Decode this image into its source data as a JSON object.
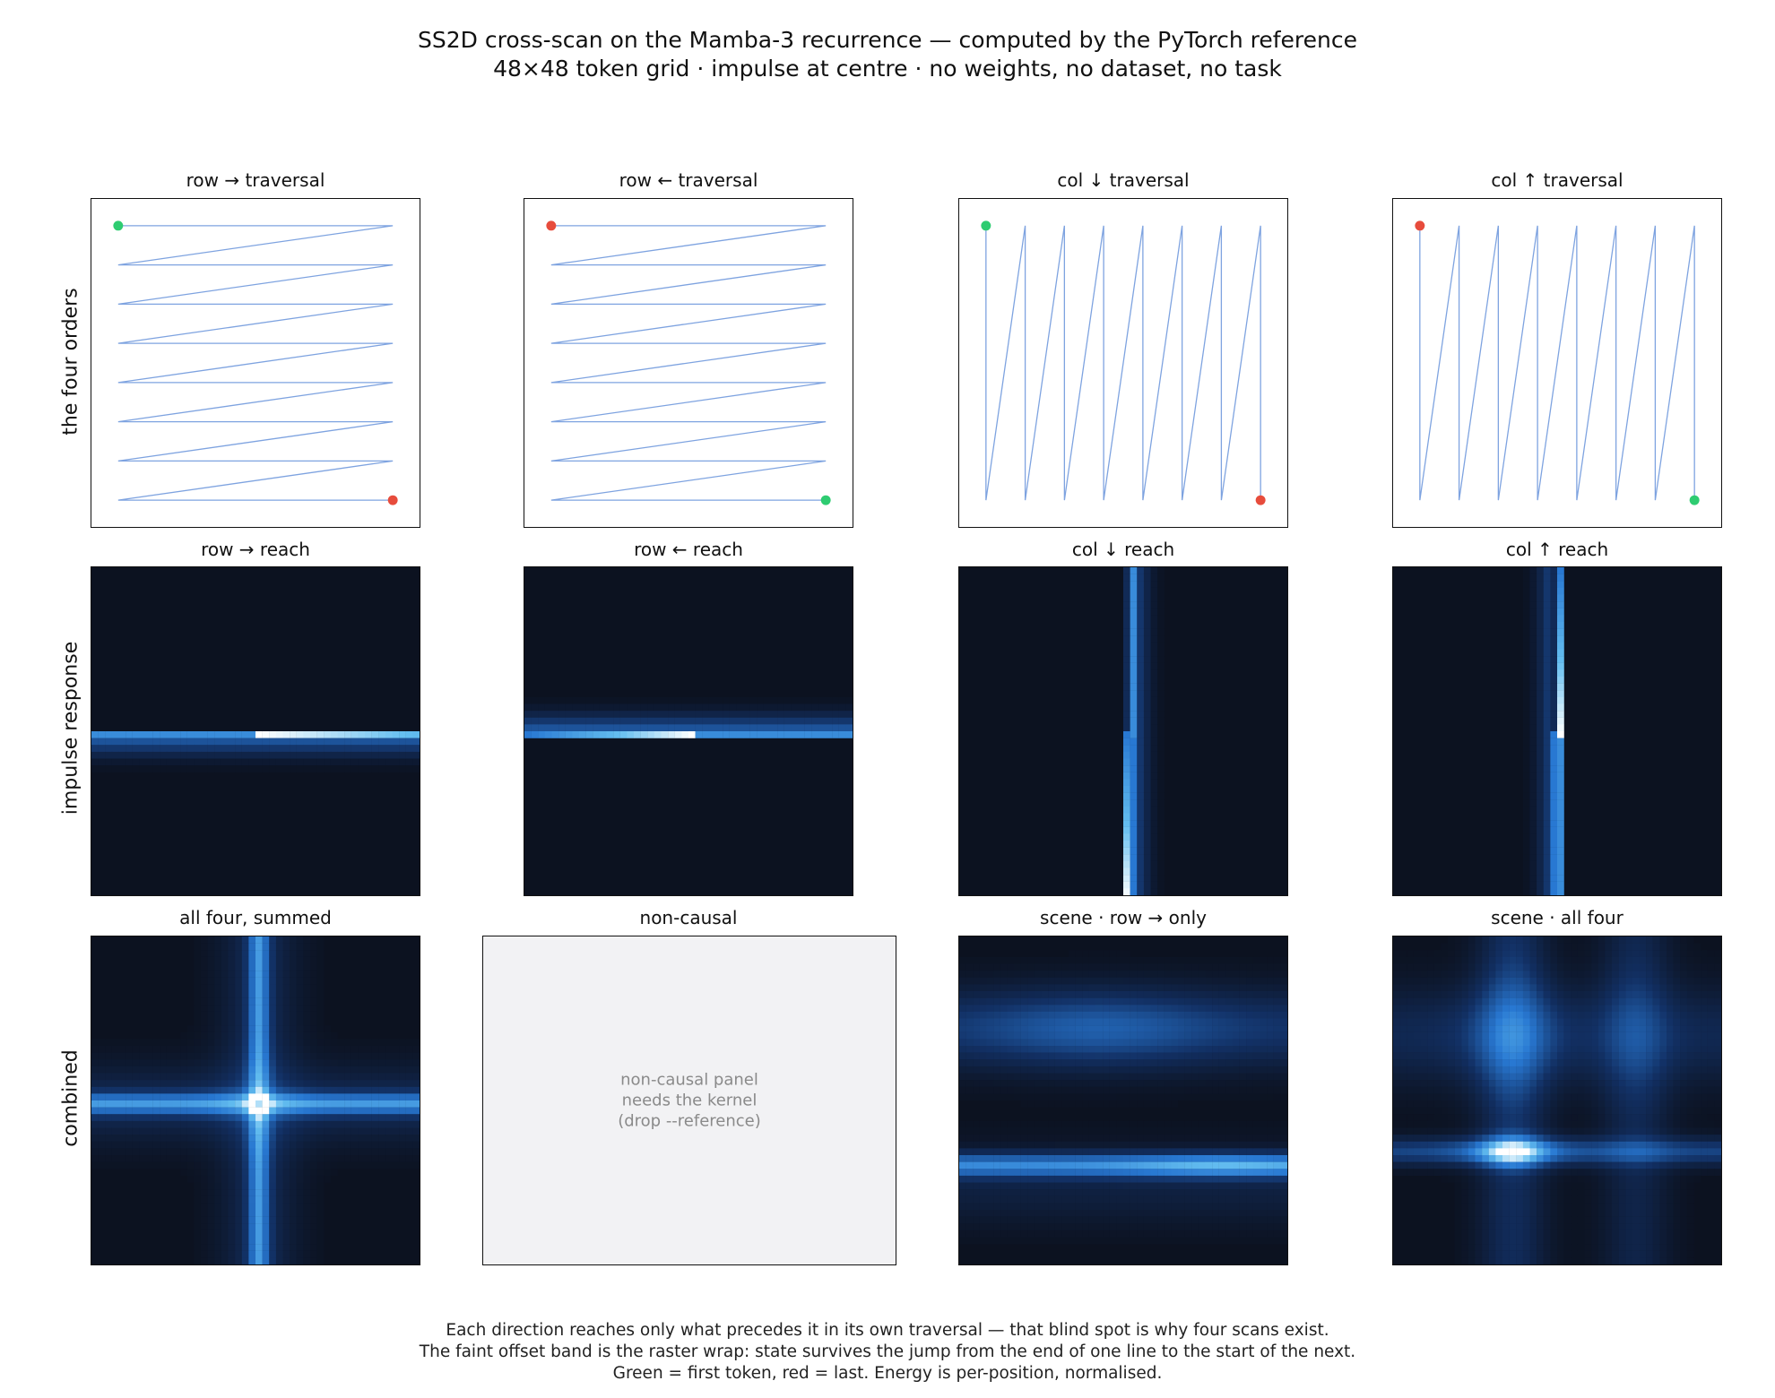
{
  "figure": {
    "title_line1": "SS2D cross-scan on the Mamba-3 recurrence — computed by the PyTorch reference",
    "title_line2": "48×48 token grid · impulse at centre · no weights, no dataset, no task",
    "caption": [
      "Each direction reaches only what precedes it in its own traversal — that blind spot is why four scans exist.",
      "The faint offset band is the raster wrap: state survives the jump from the end of one line to the start of the next.",
      "Green = first token, red = last. Energy is per-position, normalised."
    ]
  },
  "row_labels": [
    "the four orders",
    "impulse response",
    "combined"
  ],
  "colors": {
    "path": "#7ea3e0",
    "first_token": "#2ecc71",
    "last_token": "#e74c3c",
    "background_dark": "#0c1220",
    "noncausal_bg": "#f2f2f4"
  },
  "chart_data": [
    {
      "type": "line",
      "title": "row →   traversal",
      "order": "row-forward",
      "grid_lines": 8,
      "first_token": [
        0,
        0
      ],
      "last_token": [
        7,
        7
      ]
    },
    {
      "type": "line",
      "title": "row ←   traversal",
      "order": "row-backward",
      "grid_lines": 8,
      "first_token": [
        7,
        7
      ],
      "last_token": [
        0,
        0
      ]
    },
    {
      "type": "line",
      "title": "col ↓   traversal",
      "order": "col-down",
      "grid_lines": 8,
      "first_token": [
        0,
        0
      ],
      "last_token": [
        7,
        7
      ]
    },
    {
      "type": "line",
      "title": "col ↑   traversal",
      "order": "col-up",
      "grid_lines": 8,
      "first_token": [
        7,
        7
      ],
      "last_token": [
        0,
        0
      ]
    },
    {
      "type": "heatmap",
      "title": "row →   reach",
      "pattern": "row-forward",
      "grid": 48,
      "impulse": [
        24,
        24
      ]
    },
    {
      "type": "heatmap",
      "title": "row ←   reach",
      "pattern": "row-backward",
      "grid": 48,
      "impulse": [
        24,
        24
      ]
    },
    {
      "type": "heatmap",
      "title": "col ↓   reach",
      "pattern": "col-down",
      "grid": 48,
      "impulse": [
        24,
        24
      ]
    },
    {
      "type": "heatmap",
      "title": "col ↑   reach",
      "pattern": "col-up",
      "grid": 48,
      "impulse": [
        24,
        24
      ]
    },
    {
      "type": "heatmap",
      "title": "all four, summed",
      "pattern": "cross",
      "grid": 48,
      "impulse": [
        24,
        24
      ]
    },
    {
      "type": "table",
      "title": "non-causal",
      "message": "non-causal panel\nneeds the kernel\n(drop --reference)"
    },
    {
      "type": "heatmap",
      "title": "scene · row → only",
      "pattern": "scene-row",
      "grid": 48
    },
    {
      "type": "heatmap",
      "title": "scene · all four",
      "pattern": "scene-all",
      "grid": 48
    }
  ]
}
